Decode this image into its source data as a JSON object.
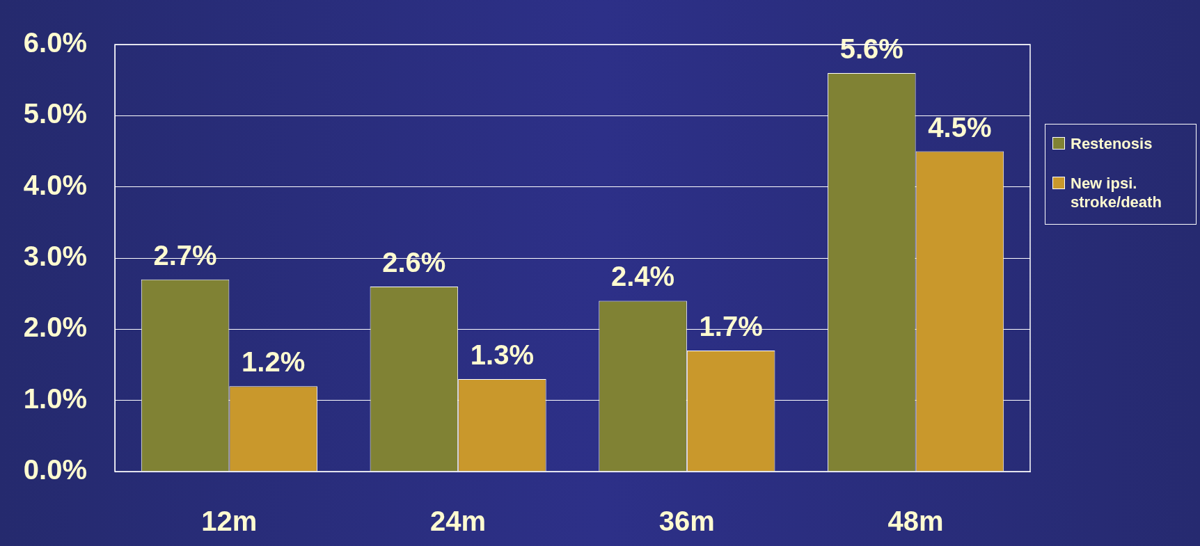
{
  "chart_data": {
    "type": "bar",
    "categories": [
      "12m",
      "24m",
      "36m",
      "48m"
    ],
    "series": [
      {
        "name": "Restenosis",
        "color": "#808234",
        "values": [
          2.7,
          2.6,
          2.4,
          5.6
        ],
        "value_labels": [
          "2.7%",
          "2.6%",
          "2.4%",
          "5.6%"
        ]
      },
      {
        "name": "New ipsi. stroke/death",
        "color": "#c9982c",
        "values": [
          1.2,
          1.3,
          1.7,
          4.5
        ],
        "value_labels": [
          "1.2%",
          "1.3%",
          "1.7%",
          "4.5%"
        ]
      }
    ],
    "ylim": [
      0,
      6
    ],
    "yticks": [
      {
        "value": 0,
        "label": "0.0%"
      },
      {
        "value": 1,
        "label": "1.0%"
      },
      {
        "value": 2,
        "label": "2.0%"
      },
      {
        "value": 3,
        "label": "3.0%"
      },
      {
        "value": 4,
        "label": "4.0%"
      },
      {
        "value": 5,
        "label": "5.0%"
      },
      {
        "value": 6,
        "label": "6.0%"
      }
    ],
    "grid": "y",
    "legend": "right"
  }
}
